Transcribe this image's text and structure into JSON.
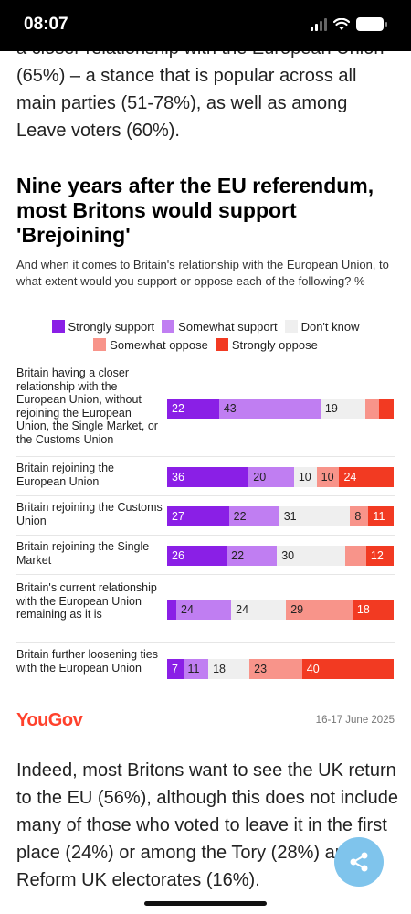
{
  "status": {
    "time": "08:07"
  },
  "article": {
    "para_top": "a closer relationship with the European Union (65%) – a stance that is popular across all main parties (51-78%), as well as among Leave voters (60%).",
    "para_bottom": "Indeed, most Britons want to see the UK return to the EU (56%), although this does not include many of those who voted to leave it in the first place (24%) or among the Tory (28%) and Reform UK electorates (16%)."
  },
  "chart_data": {
    "type": "bar",
    "orientation": "horizontal-stacked",
    "title": "Nine years after the EU referendum, most Britons would support 'Brejoining'",
    "subtitle": "And when it comes to Britain's relationship with the European Union, to what extent would you support or oppose each of the following? %",
    "categories": [
      "Britain having a closer relationship with the European Union, without rejoining the European Union, the Single Market, or the Customs Union",
      "Britain rejoining the European Union",
      "Britain rejoining the Customs Union",
      "Britain rejoining the Single Market",
      "Britain's current relationship with the European Union remaining as it is",
      "Britain further loosening ties with the European Union"
    ],
    "series": [
      {
        "name": "Strongly support",
        "color": "#8a1fe6",
        "values": [
          22,
          36,
          27,
          26,
          4,
          7
        ]
      },
      {
        "name": "Somewhat support",
        "color": "#c07ef2",
        "values": [
          43,
          20,
          22,
          22,
          24,
          11
        ]
      },
      {
        "name": "Don't know",
        "color": "#efefef",
        "values": [
          19,
          10,
          31,
          30,
          24,
          18
        ]
      },
      {
        "name": "Somewhat oppose",
        "color": "#f8948a",
        "values": [
          6,
          10,
          8,
          9,
          29,
          23
        ]
      },
      {
        "name": "Strongly oppose",
        "color": "#f23a22",
        "values": [
          6,
          24,
          11,
          12,
          18,
          40
        ]
      }
    ],
    "labels": [
      [
        "22",
        "43",
        "19",
        "",
        ""
      ],
      [
        "36",
        "20",
        "10",
        "10",
        "24"
      ],
      [
        "27",
        "22",
        "31",
        "8",
        "11"
      ],
      [
        "26",
        "22",
        "30",
        "",
        "12"
      ],
      [
        "",
        "24",
        "24",
        "29",
        "18"
      ],
      [
        "7",
        "11",
        "18",
        "23",
        "40"
      ]
    ],
    "legend_position": "top",
    "grid": false
  },
  "footer": {
    "brand": "YouGov",
    "date": "16-17 June 2025"
  },
  "icons": {
    "share": "share-icon",
    "wifi": "wifi-icon",
    "battery": "battery-icon",
    "signal": "signal-icon"
  }
}
